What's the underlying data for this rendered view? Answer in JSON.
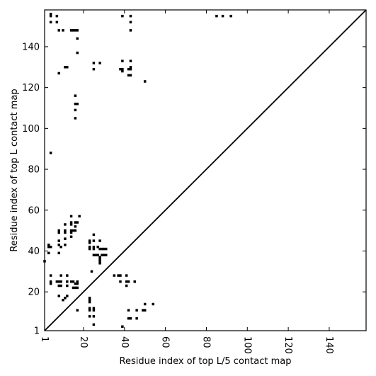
{
  "chart_data": {
    "type": "scatter",
    "title": "",
    "xlabel": "Residue index of top L/5 contact map",
    "ylabel": "Residue index of top L contact map",
    "xlim": [
      1,
      158
    ],
    "ylim": [
      1,
      158
    ],
    "xticks": [
      1,
      20,
      40,
      60,
      80,
      100,
      120,
      140
    ],
    "yticks": [
      1,
      20,
      40,
      60,
      80,
      100,
      120,
      140
    ],
    "grid": false,
    "diagonal": true,
    "series_color": "#000000",
    "points": [
      [
        1,
        35
      ],
      [
        3,
        39
      ],
      [
        3,
        42
      ],
      [
        3,
        43
      ],
      [
        4,
        42
      ],
      [
        4,
        88
      ],
      [
        4,
        152
      ],
      [
        4,
        155
      ],
      [
        4,
        156
      ],
      [
        7,
        152
      ],
      [
        7,
        155
      ],
      [
        8,
        127
      ],
      [
        8,
        148
      ],
      [
        10,
        148
      ],
      [
        11,
        130
      ],
      [
        12,
        130
      ],
      [
        14,
        148
      ],
      [
        15,
        148
      ],
      [
        16,
        148
      ],
      [
        17,
        148
      ],
      [
        17,
        144
      ],
      [
        17,
        137
      ],
      [
        16,
        116
      ],
      [
        16,
        112
      ],
      [
        17,
        112
      ],
      [
        16,
        109
      ],
      [
        16,
        105
      ],
      [
        25,
        132
      ],
      [
        25,
        129
      ],
      [
        28,
        132
      ],
      [
        38,
        129
      ],
      [
        39,
        129
      ],
      [
        39,
        128
      ],
      [
        39,
        133
      ],
      [
        39,
        155
      ],
      [
        42,
        126
      ],
      [
        43,
        126
      ],
      [
        42,
        129
      ],
      [
        43,
        129
      ],
      [
        43,
        130
      ],
      [
        43,
        133
      ],
      [
        43,
        148
      ],
      [
        43,
        152
      ],
      [
        43,
        155
      ],
      [
        50,
        123
      ],
      [
        85,
        155
      ],
      [
        88,
        155
      ],
      [
        92,
        155
      ],
      [
        8,
        50
      ],
      [
        8,
        49
      ],
      [
        8,
        45
      ],
      [
        8,
        43
      ],
      [
        8,
        39
      ],
      [
        9,
        42
      ],
      [
        11,
        43
      ],
      [
        11,
        46
      ],
      [
        11,
        49
      ],
      [
        11,
        50
      ],
      [
        11,
        53
      ],
      [
        14,
        57
      ],
      [
        14,
        54
      ],
      [
        14,
        53
      ],
      [
        14,
        50
      ],
      [
        14,
        49
      ],
      [
        14,
        47
      ],
      [
        15,
        50
      ],
      [
        16,
        54
      ],
      [
        16,
        50
      ],
      [
        16,
        52
      ],
      [
        17,
        54
      ],
      [
        18,
        57
      ],
      [
        23,
        45
      ],
      [
        23,
        44
      ],
      [
        23,
        42
      ],
      [
        23,
        41
      ],
      [
        25,
        48
      ],
      [
        25,
        45
      ],
      [
        25,
        42
      ],
      [
        25,
        41
      ],
      [
        25,
        38
      ],
      [
        26,
        38
      ],
      [
        27,
        38
      ],
      [
        27,
        42
      ],
      [
        28,
        41
      ],
      [
        28,
        45
      ],
      [
        28,
        37
      ],
      [
        28,
        36
      ],
      [
        28,
        35
      ],
      [
        28,
        34
      ],
      [
        29,
        38
      ],
      [
        29,
        41
      ],
      [
        30,
        38
      ],
      [
        30,
        41
      ],
      [
        31,
        38
      ],
      [
        31,
        41
      ],
      [
        24,
        30
      ],
      [
        4,
        28
      ],
      [
        4,
        25
      ],
      [
        4,
        24
      ],
      [
        7,
        25
      ],
      [
        8,
        25
      ],
      [
        8,
        23
      ],
      [
        9,
        28
      ],
      [
        9,
        25
      ],
      [
        9,
        23
      ],
      [
        8,
        18
      ],
      [
        10,
        16
      ],
      [
        11,
        17
      ],
      [
        12,
        18
      ],
      [
        12,
        25
      ],
      [
        12,
        23
      ],
      [
        12,
        28
      ],
      [
        14,
        25
      ],
      [
        15,
        25
      ],
      [
        15,
        22
      ],
      [
        16,
        22
      ],
      [
        16,
        24
      ],
      [
        17,
        24
      ],
      [
        17,
        22
      ],
      [
        17,
        25
      ],
      [
        17,
        11
      ],
      [
        23,
        17
      ],
      [
        23,
        16
      ],
      [
        23,
        15
      ],
      [
        23,
        12
      ],
      [
        23,
        11
      ],
      [
        23,
        8
      ],
      [
        25,
        12
      ],
      [
        25,
        11
      ],
      [
        25,
        8
      ],
      [
        25,
        4
      ],
      [
        35,
        28
      ],
      [
        37,
        28
      ],
      [
        38,
        28
      ],
      [
        38,
        25
      ],
      [
        41,
        28
      ],
      [
        41,
        25
      ],
      [
        41,
        23
      ],
      [
        42,
        25
      ],
      [
        42,
        11
      ],
      [
        42,
        7
      ],
      [
        43,
        7
      ],
      [
        45,
        25
      ],
      [
        46,
        11
      ],
      [
        46,
        7
      ],
      [
        49,
        11
      ],
      [
        50,
        11
      ],
      [
        50,
        14
      ],
      [
        54,
        14
      ],
      [
        39,
        3
      ]
    ]
  }
}
